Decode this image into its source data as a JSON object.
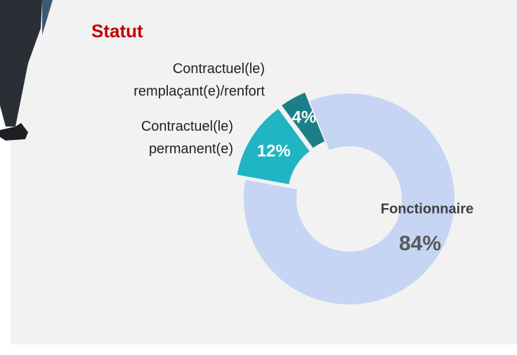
{
  "chart_data": {
    "type": "donut",
    "title": "Statut",
    "categories": [
      "Fonctionnaire",
      "Contractuel(le) permanent(e)",
      "Contractuel(le) remplaçant(e)/renfort"
    ],
    "values": [
      84,
      12,
      4
    ],
    "value_labels": [
      "84%",
      "12%",
      "4%"
    ],
    "colors": [
      "#c5d5f3",
      "#1fb5c3",
      "#1a7f88"
    ]
  }
}
